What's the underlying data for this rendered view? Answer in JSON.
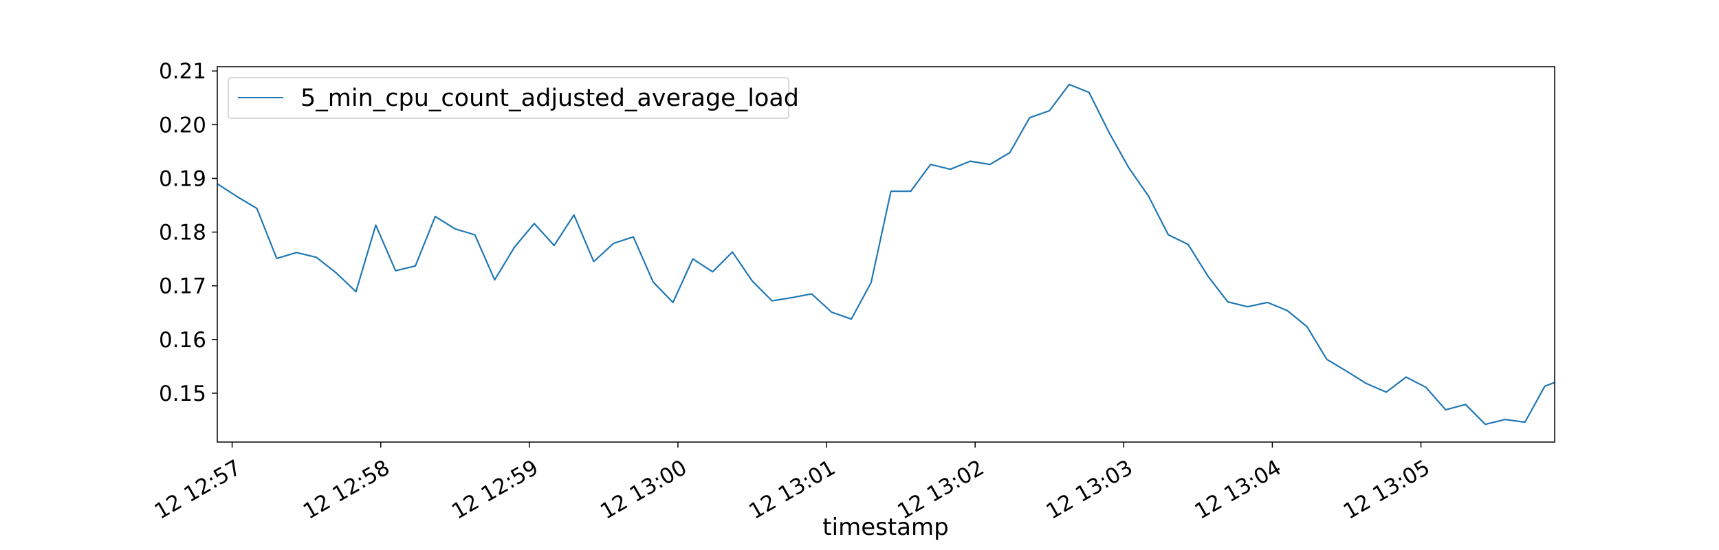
{
  "chart_data": {
    "type": "line",
    "title": "",
    "xlabel": "timestamp",
    "ylabel": "",
    "ylim": [
      0.1409,
      0.2108
    ],
    "xlim": [
      "12:56:54",
      "13:05:54"
    ],
    "x_ticks": [
      {
        "time": "12:57:00",
        "label": "12 12:57"
      },
      {
        "time": "12:58:00",
        "label": "12 12:58"
      },
      {
        "time": "12:59:00",
        "label": "12 12:59"
      },
      {
        "time": "13:00:00",
        "label": "12 13:00"
      },
      {
        "time": "13:01:00",
        "label": "12 13:01"
      },
      {
        "time": "13:02:00",
        "label": "12 13:02"
      },
      {
        "time": "13:03:00",
        "label": "12 13:03"
      },
      {
        "time": "13:04:00",
        "label": "12 13:04"
      },
      {
        "time": "13:05:00",
        "label": "12 13:05"
      }
    ],
    "y_ticks": [
      {
        "value": 0.15,
        "label": "0.15"
      },
      {
        "value": 0.16,
        "label": "0.16"
      },
      {
        "value": 0.17,
        "label": "0.17"
      },
      {
        "value": 0.18,
        "label": "0.18"
      },
      {
        "value": 0.19,
        "label": "0.19"
      },
      {
        "value": 0.2,
        "label": "0.20"
      },
      {
        "value": 0.21,
        "label": "0.21"
      }
    ],
    "legend": {
      "placement": "upper-left"
    },
    "grid": false,
    "series": [
      {
        "name": "5_min_cpu_count_adjusted_average_load",
        "color": "#1f77b4",
        "x": [
          "12:56:54",
          "12:57:02",
          "12:57:10",
          "12:57:18",
          "12:57:26",
          "12:57:34",
          "12:57:42",
          "12:57:50",
          "12:57:58",
          "12:58:06",
          "12:58:14",
          "12:58:22",
          "12:58:30",
          "12:58:38",
          "12:58:46",
          "12:58:54",
          "12:59:02",
          "12:59:10",
          "12:59:18",
          "12:59:26",
          "12:59:34",
          "12:59:42",
          "12:59:50",
          "12:59:58",
          "13:00:06",
          "13:00:14",
          "13:00:22",
          "13:00:30",
          "13:00:38",
          "13:00:46",
          "13:00:54",
          "13:01:02",
          "13:01:10",
          "13:01:18",
          "13:01:26",
          "13:01:34",
          "13:01:42",
          "13:01:50",
          "13:01:58",
          "13:02:06",
          "13:02:14",
          "13:02:22",
          "13:02:30",
          "13:02:38",
          "13:02:46",
          "13:02:54",
          "13:03:02",
          "13:03:10",
          "13:03:18",
          "13:03:26",
          "13:03:34",
          "13:03:42",
          "13:03:50",
          "13:03:58",
          "13:04:06",
          "13:04:14",
          "13:04:22",
          "13:04:30",
          "13:04:38",
          "13:04:46",
          "13:04:54",
          "13:05:02",
          "13:05:10",
          "13:05:18",
          "13:05:26",
          "13:05:34",
          "13:05:42",
          "13:05:50",
          "13:05:54"
        ],
        "values": [
          0.189,
          0.1866,
          0.1844,
          0.1751,
          0.1762,
          0.1753,
          0.1724,
          0.1689,
          0.1813,
          0.1728,
          0.1737,
          0.1829,
          0.1806,
          0.1795,
          0.1711,
          0.1772,
          0.1816,
          0.1775,
          0.1832,
          0.1745,
          0.1779,
          0.1791,
          0.1707,
          0.1669,
          0.175,
          0.1726,
          0.1763,
          0.1709,
          0.1672,
          0.1678,
          0.1685,
          0.1651,
          0.1638,
          0.1706,
          0.1876,
          0.1876,
          0.1926,
          0.1917,
          0.1932,
          0.1926,
          0.1948,
          0.2013,
          0.2026,
          0.2075,
          0.206,
          0.1986,
          0.192,
          0.1867,
          0.1795,
          0.1777,
          0.1718,
          0.167,
          0.1661,
          0.1669,
          0.1654,
          0.1624,
          0.1563,
          0.1541,
          0.1518,
          0.1502,
          0.153,
          0.1511,
          0.1469,
          0.1479,
          0.1442,
          0.1451,
          0.1446,
          0.1513,
          0.152
        ]
      }
    ]
  }
}
